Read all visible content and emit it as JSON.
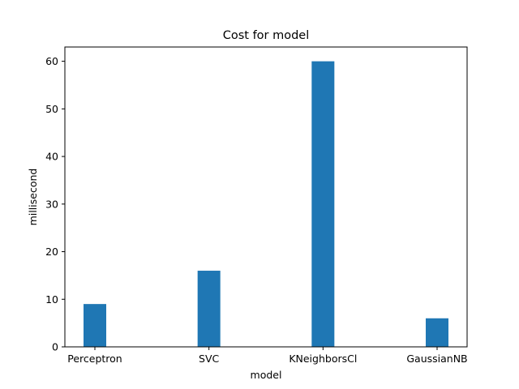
{
  "chart_data": {
    "type": "bar",
    "title": "Cost for model",
    "xlabel": "model",
    "ylabel": "millisecond",
    "categories": [
      "Perceptron",
      "SVC",
      "KNeighborsCl",
      "GaussianNB"
    ],
    "values": [
      9,
      16,
      60,
      6
    ],
    "ylim": [
      0,
      63
    ],
    "yticks": [
      0,
      10,
      20,
      30,
      40,
      50,
      60
    ],
    "bar_color": "#1f77b4",
    "grid": false,
    "legend": "none"
  }
}
